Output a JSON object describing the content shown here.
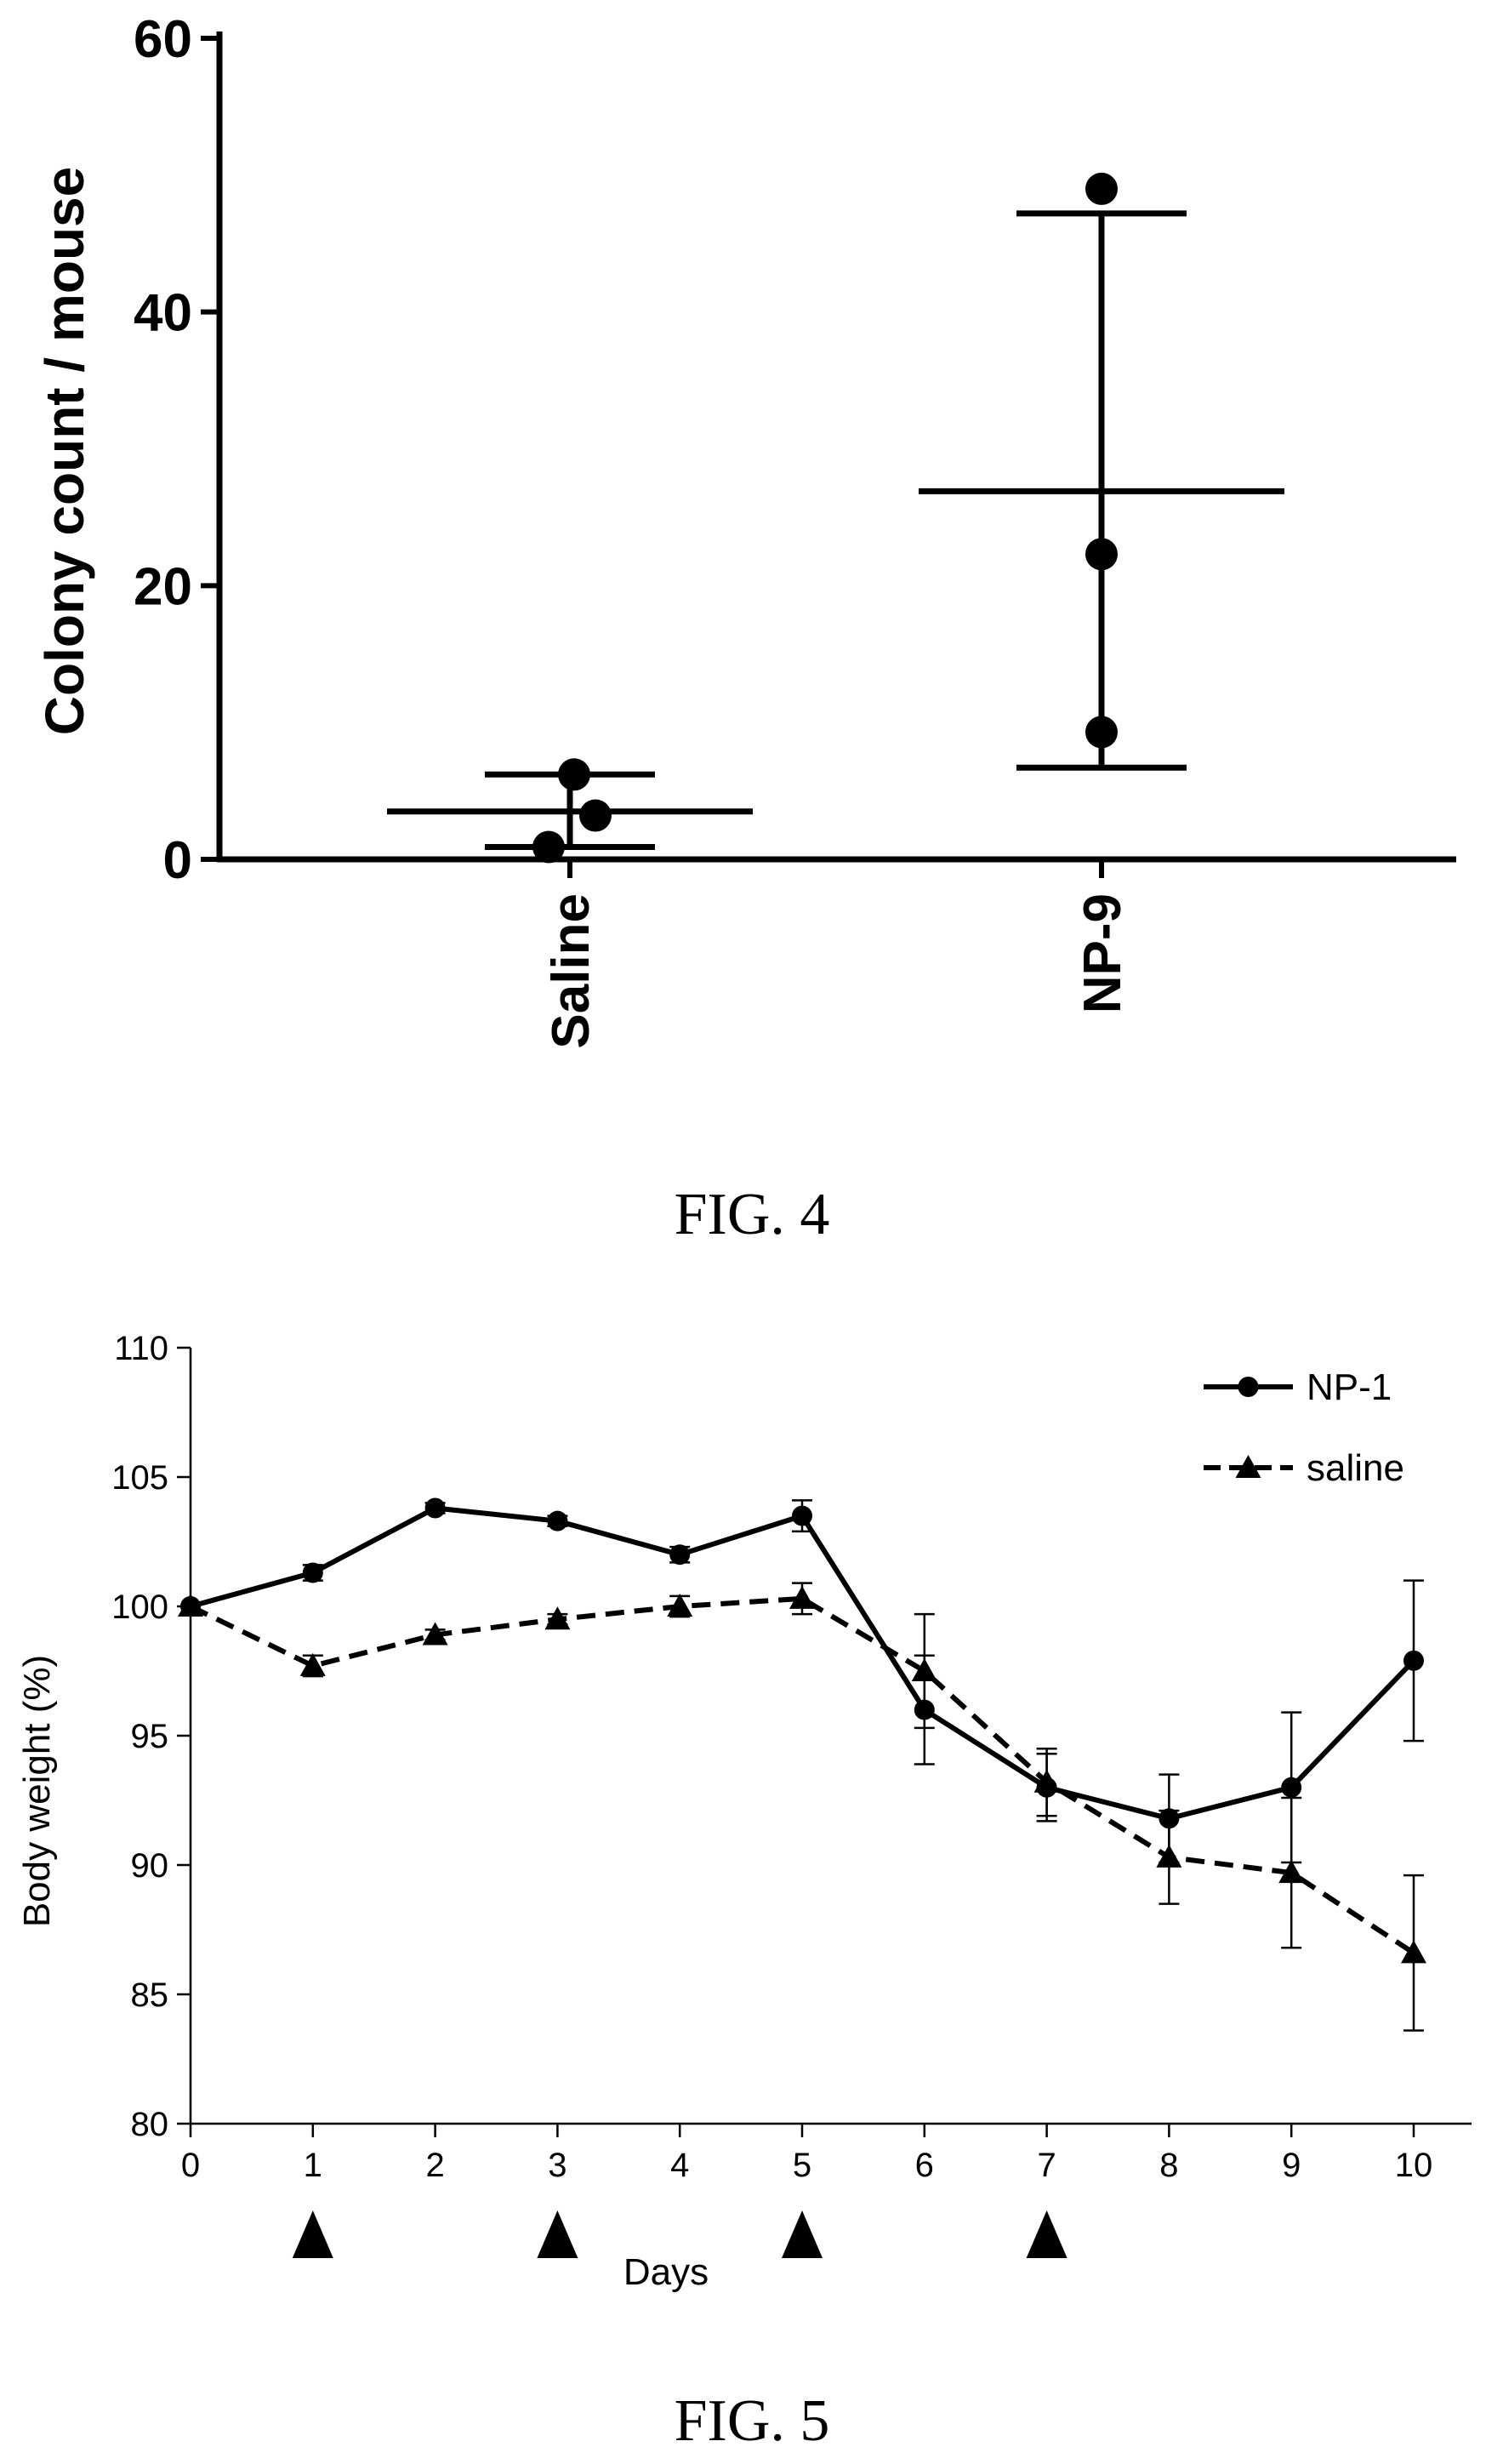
{
  "fig4": {
    "caption": "FIG. 4",
    "chart_data": {
      "type": "scatter",
      "ylabel": "Colony count / mouse",
      "ylim": [
        0,
        60
      ],
      "yticks": [
        "0",
        "20",
        "40",
        "60"
      ],
      "categories": [
        "Saline",
        "NP-9"
      ],
      "points": {
        "Saline": [
          6.2,
          3.2,
          0.9
        ],
        "NP-9": [
          49.0,
          22.3,
          9.3
        ]
      },
      "mean": {
        "Saline": 3.5,
        "NP-9": 26.9
      },
      "error": {
        "Saline": [
          0.9,
          6.2
        ],
        "NP-9": [
          6.7,
          47.2
        ]
      }
    }
  },
  "fig5": {
    "caption": "FIG. 5",
    "chart_data": {
      "type": "line",
      "xlabel": "Days",
      "ylabel": "Body weight (%)",
      "ylim": [
        80,
        110
      ],
      "xlim": [
        0,
        10
      ],
      "yticks": [
        "80",
        "85",
        "90",
        "95",
        "100",
        "105",
        "110"
      ],
      "xticks": [
        "0",
        "1",
        "2",
        "3",
        "4",
        "5",
        "6",
        "7",
        "8",
        "9",
        "10"
      ],
      "x": [
        0,
        1,
        2,
        3,
        4,
        5,
        6,
        7,
        8,
        9,
        10
      ],
      "series": [
        {
          "name": "NP-1",
          "values": [
            100.0,
            101.3,
            103.8,
            103.3,
            102.0,
            103.5,
            96.0,
            93.0,
            91.8,
            93.0,
            97.9
          ],
          "err": [
            0,
            0.3,
            0.2,
            0.2,
            0.3,
            0.6,
            2.1,
            1.3,
            1.7,
            2.9,
            3.1
          ],
          "line": "solid",
          "marker": "circle"
        },
        {
          "name": "saline",
          "values": [
            100.0,
            97.7,
            98.9,
            99.5,
            100.0,
            100.3,
            97.5,
            93.2,
            90.3,
            89.7,
            86.6
          ],
          "err": [
            0,
            0.4,
            0.2,
            0.2,
            0.4,
            0.6,
            2.2,
            1.3,
            1.8,
            2.9,
            3.0
          ],
          "line": "dashed",
          "marker": "triangle"
        }
      ],
      "dosing_days": [
        1,
        3,
        5,
        7
      ],
      "legend_position": "top-right"
    }
  }
}
